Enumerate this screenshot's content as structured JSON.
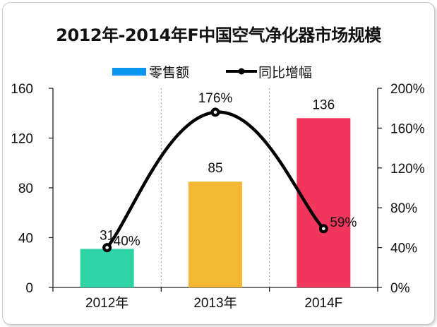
{
  "chart_data": {
    "type": "bar",
    "title": "2012年-2014年F中国空气净化器市场规模",
    "categories": [
      "2012年",
      "2013年",
      "2014F"
    ],
    "bar_series": {
      "name": "零售额",
      "values": [
        31,
        85,
        136
      ],
      "colors": [
        "#2ed3a6",
        "#f4b731",
        "#f1365e"
      ],
      "legend_color": "#0a96f0"
    },
    "line_series": {
      "name": "同比增幅",
      "values": [
        40,
        176,
        59
      ],
      "labels": [
        "40%",
        "176%",
        "59%"
      ],
      "color": "#000000"
    },
    "left_axis": {
      "ylim": [
        0,
        160
      ],
      "ticks": [
        "0",
        "40",
        "80",
        "120",
        "160"
      ]
    },
    "right_axis": {
      "ylim": [
        0,
        200
      ],
      "ticks": [
        "0%",
        "40%",
        "80%",
        "120%",
        "160%",
        "200%"
      ]
    },
    "grid": "vertical-dashed",
    "legend": "top"
  }
}
